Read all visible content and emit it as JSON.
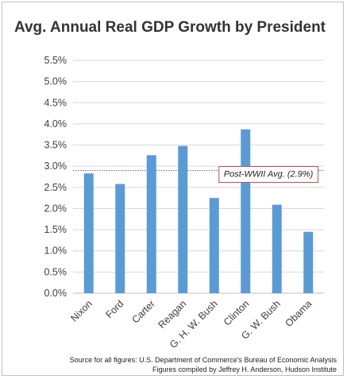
{
  "chart_data": {
    "type": "bar",
    "title": "Avg. Annual Real GDP Growth by President",
    "categories": [
      "Nixon",
      "Ford",
      "Carter",
      "Reagan",
      "G. H. W. Bush",
      "Clinton",
      "G. W. Bush",
      "Obama"
    ],
    "values": [
      2.83,
      2.58,
      3.26,
      3.48,
      2.25,
      3.87,
      2.09,
      1.45
    ],
    "ylim": [
      0,
      5.5
    ],
    "yticks": [
      "0.0%",
      "0.5%",
      "1.0%",
      "1.5%",
      "2.0%",
      "2.5%",
      "3.0%",
      "3.5%",
      "4.0%",
      "4.5%",
      "5.0%",
      "5.5%"
    ],
    "grid": true,
    "bar_color": "#5b9bd5",
    "reference_line": {
      "value": 2.9,
      "label": "Post-WWII Avg. (2.9%)",
      "color": "#c0504d"
    },
    "source_lines": [
      "Source for all figures: U.S. Department of Commerce's Bureau of Economic Analysis",
      "Figures compiled by Jeffrey H. Anderson, Hudson Institute"
    ]
  }
}
